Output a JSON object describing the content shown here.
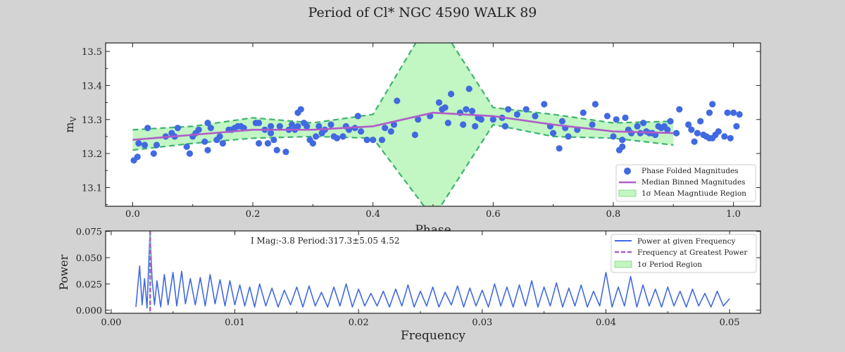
{
  "figure": {
    "title": "Period of Cl* NGC 4590   WALK      89",
    "background": "#d3d3d3"
  },
  "chart_data": [
    {
      "type": "scatter",
      "xlabel": "Phase",
      "ylabel": "m_V",
      "xlim": [
        -0.045,
        1.045
      ],
      "ylim": [
        13.045,
        13.525
      ],
      "xticks": [
        "0.0",
        "0.2",
        "0.4",
        "0.6",
        "0.8",
        "1.0"
      ],
      "xtick_values": [
        0.0,
        0.2,
        0.4,
        0.6,
        0.8,
        1.0
      ],
      "yticks": [
        "13.1",
        "13.2",
        "13.3",
        "13.4",
        "13.5"
      ],
      "ytick_values": [
        13.1,
        13.2,
        13.3,
        13.4,
        13.5
      ],
      "legend": {
        "placement": "lower-right",
        "entries": [
          "Phase Folded Magnitudes",
          "Median Binned Magnitudes",
          "1σ Mean Magntiude Region"
        ]
      },
      "colors": {
        "points": "#4169e1",
        "median": "#b05cc8",
        "band_fill": "#90ee90",
        "band_edge": "#3cb371"
      },
      "series": [
        {
          "name": "Phase Folded Magnitudes",
          "points": [
            [
              0.002,
              13.18
            ],
            [
              0.008,
              13.19
            ],
            [
              0.01,
              13.23
            ],
            [
              0.02,
              13.225
            ],
            [
              0.025,
              13.275
            ],
            [
              0.035,
              13.2
            ],
            [
              0.04,
              13.225
            ],
            [
              0.055,
              13.25
            ],
            [
              0.065,
              13.26
            ],
            [
              0.07,
              13.25
            ],
            [
              0.075,
              13.275
            ],
            [
              0.09,
              13.22
            ],
            [
              0.095,
              13.2
            ],
            [
              0.1,
              13.25
            ],
            [
              0.105,
              13.26
            ],
            [
              0.11,
              13.27
            ],
            [
              0.12,
              13.235
            ],
            [
              0.125,
              13.29
            ],
            [
              0.125,
              13.21
            ],
            [
              0.13,
              13.275
            ],
            [
              0.14,
              13.24
            ],
            [
              0.145,
              13.25
            ],
            [
              0.15,
              13.23
            ],
            [
              0.16,
              13.27
            ],
            [
              0.165,
              13.27
            ],
            [
              0.17,
              13.275
            ],
            [
              0.175,
              13.28
            ],
            [
              0.18,
              13.28
            ],
            [
              0.185,
              13.275
            ],
            [
              0.205,
              13.29
            ],
            [
              0.21,
              13.23
            ],
            [
              0.21,
              13.29
            ],
            [
              0.22,
              13.27
            ],
            [
              0.225,
              13.23
            ],
            [
              0.23,
              13.28
            ],
            [
              0.23,
              13.26
            ],
            [
              0.235,
              13.24
            ],
            [
              0.24,
              13.21
            ],
            [
              0.245,
              13.28
            ],
            [
              0.255,
              13.205
            ],
            [
              0.26,
              13.27
            ],
            [
              0.265,
              13.285
            ],
            [
              0.27,
              13.27
            ],
            [
              0.275,
              13.28
            ],
            [
              0.275,
              13.32
            ],
            [
              0.28,
              13.33
            ],
            [
              0.285,
              13.29
            ],
            [
              0.29,
              13.28
            ],
            [
              0.295,
              13.24
            ],
            [
              0.3,
              13.23
            ],
            [
              0.305,
              13.25
            ],
            [
              0.31,
              13.28
            ],
            [
              0.315,
              13.26
            ],
            [
              0.32,
              13.27
            ],
            [
              0.33,
              13.285
            ],
            [
              0.335,
              13.25
            ],
            [
              0.34,
              13.245
            ],
            [
              0.35,
              13.25
            ],
            [
              0.355,
              13.28
            ],
            [
              0.36,
              13.27
            ],
            [
              0.37,
              13.275
            ],
            [
              0.375,
              13.31
            ],
            [
              0.38,
              13.265
            ],
            [
              0.39,
              13.24
            ],
            [
              0.4,
              13.24
            ],
            [
              0.415,
              13.24
            ],
            [
              0.42,
              13.275
            ],
            [
              0.43,
              13.265
            ],
            [
              0.435,
              13.285
            ],
            [
              0.44,
              13.355
            ],
            [
              0.47,
              13.255
            ],
            [
              0.475,
              13.3
            ],
            [
              0.495,
              13.31
            ],
            [
              0.51,
              13.35
            ],
            [
              0.515,
              13.33
            ],
            [
              0.52,
              13.335
            ],
            [
              0.525,
              13.29
            ],
            [
              0.53,
              13.375
            ],
            [
              0.545,
              13.32
            ],
            [
              0.55,
              13.285
            ],
            [
              0.555,
              13.33
            ],
            [
              0.56,
              13.39
            ],
            [
              0.565,
              13.325
            ],
            [
              0.57,
              13.28
            ],
            [
              0.575,
              13.305
            ],
            [
              0.58,
              13.3
            ],
            [
              0.6,
              13.3
            ],
            [
              0.615,
              13.305
            ],
            [
              0.62,
              13.28
            ],
            [
              0.625,
              13.33
            ],
            [
              0.64,
              13.315
            ],
            [
              0.655,
              13.33
            ],
            [
              0.67,
              13.31
            ],
            [
              0.685,
              13.345
            ],
            [
              0.695,
              13.28
            ],
            [
              0.7,
              13.26
            ],
            [
              0.71,
              13.215
            ],
            [
              0.715,
              13.295
            ],
            [
              0.72,
              13.275
            ],
            [
              0.725,
              13.25
            ],
            [
              0.74,
              13.27
            ],
            [
              0.75,
              13.32
            ],
            [
              0.765,
              13.285
            ],
            [
              0.77,
              13.345
            ],
            [
              0.79,
              13.31
            ],
            [
              0.8,
              13.25
            ],
            [
              0.805,
              13.3
            ],
            [
              0.81,
              13.21
            ],
            [
              0.815,
              13.24
            ],
            [
              0.815,
              13.22
            ],
            [
              0.82,
              13.305
            ],
            [
              0.825,
              13.27
            ],
            [
              0.83,
              13.26
            ],
            [
              0.84,
              13.28
            ],
            [
              0.845,
              13.26
            ],
            [
              0.85,
              13.29
            ],
            [
              0.855,
              13.265
            ],
            [
              0.86,
              13.26
            ],
            [
              0.865,
              13.26
            ],
            [
              0.87,
              13.255
            ],
            [
              0.875,
              13.28
            ],
            [
              0.88,
              13.275
            ],
            [
              0.885,
              13.28
            ],
            [
              0.89,
              13.27
            ],
            [
              0.895,
              13.295
            ],
            [
              0.905,
              13.26
            ],
            [
              0.91,
              13.33
            ],
            [
              0.925,
              13.285
            ],
            [
              0.93,
              13.27
            ],
            [
              0.935,
              13.235
            ],
            [
              0.94,
              13.26
            ],
            [
              0.945,
              13.295
            ],
            [
              0.95,
              13.255
            ],
            [
              0.955,
              13.25
            ],
            [
              0.96,
              13.245
            ],
            [
              0.96,
              13.32
            ],
            [
              0.965,
              13.345
            ],
            [
              0.965,
              13.245
            ],
            [
              0.97,
              13.255
            ],
            [
              0.975,
              13.265
            ],
            [
              0.985,
              13.25
            ],
            [
              0.99,
              13.32
            ],
            [
              0.995,
              13.245
            ],
            [
              1.0,
              13.32
            ],
            [
              1.005,
              13.28
            ],
            [
              1.01,
              13.315
            ]
          ]
        },
        {
          "name": "Median Binned Magnitudes",
          "x": [
            0.0,
            0.1,
            0.2,
            0.3,
            0.4,
            0.5,
            0.6,
            0.7,
            0.8,
            0.9
          ],
          "y": [
            13.24,
            13.255,
            13.27,
            13.27,
            13.28,
            13.32,
            13.31,
            13.285,
            13.265,
            13.26
          ]
        },
        {
          "name": "1σ Mean Magntiude Region",
          "x": [
            0.0,
            0.1,
            0.2,
            0.3,
            0.4,
            0.5,
            0.6,
            0.7,
            0.8,
            0.9
          ],
          "upper": [
            13.27,
            13.28,
            13.305,
            13.29,
            13.315,
            13.61,
            13.335,
            13.315,
            13.29,
            13.295
          ],
          "lower": [
            13.21,
            13.23,
            13.245,
            13.25,
            13.245,
            13.01,
            13.285,
            13.25,
            13.245,
            13.225
          ]
        }
      ]
    },
    {
      "type": "line",
      "xlabel": "Frequency",
      "ylabel": "Power",
      "annotation": "I Mag:-3.8 Period:317.3±5.05 4.52",
      "xlim": [
        -0.00045,
        0.0525
      ],
      "ylim": [
        -0.003,
        0.0755
      ],
      "xticks": [
        "0.00",
        "0.01",
        "0.02",
        "0.03",
        "0.04",
        "0.05"
      ],
      "xtick_values": [
        0.0,
        0.01,
        0.02,
        0.03,
        0.04,
        0.05
      ],
      "yticks": [
        "0.000",
        "0.025",
        "0.050",
        "0.075"
      ],
      "ytick_values": [
        0.0,
        0.025,
        0.05,
        0.075
      ],
      "legend": {
        "placement": "upper-right",
        "entries": [
          "Power at given Frequency",
          "Frequency at Greatest Power",
          "1σ Period Region"
        ]
      },
      "colors": {
        "power": "#4169e1",
        "peak": "#b05cc8",
        "region": "#90ee90"
      },
      "peak_frequency": 0.00315,
      "series": [
        {
          "name": "Power at given Frequency",
          "x": [
            0.002,
            0.0023,
            0.0025,
            0.0027,
            0.0029,
            0.0031,
            0.00315,
            0.0033,
            0.0035,
            0.0037,
            0.004,
            0.0043,
            0.0046,
            0.005,
            0.0053,
            0.0057,
            0.006,
            0.0064,
            0.0068,
            0.0072,
            0.0076,
            0.008,
            0.0084,
            0.0088,
            0.0092,
            0.0096,
            0.01,
            0.0104,
            0.0108,
            0.0112,
            0.0116,
            0.012,
            0.0125,
            0.013,
            0.0135,
            0.014,
            0.0145,
            0.015,
            0.0155,
            0.016,
            0.0165,
            0.017,
            0.0175,
            0.018,
            0.0185,
            0.019,
            0.0195,
            0.02,
            0.0205,
            0.021,
            0.0215,
            0.022,
            0.0225,
            0.023,
            0.0235,
            0.024,
            0.0245,
            0.025,
            0.0255,
            0.026,
            0.0265,
            0.027,
            0.0275,
            0.028,
            0.0285,
            0.029,
            0.0295,
            0.03,
            0.0305,
            0.031,
            0.0315,
            0.032,
            0.0325,
            0.033,
            0.0335,
            0.034,
            0.0345,
            0.035,
            0.0355,
            0.036,
            0.0365,
            0.037,
            0.0375,
            0.038,
            0.0385,
            0.039,
            0.0395,
            0.04,
            0.0405,
            0.041,
            0.0415,
            0.042,
            0.0425,
            0.043,
            0.0435,
            0.044,
            0.0445,
            0.045,
            0.0455,
            0.046,
            0.0465,
            0.047,
            0.0475,
            0.048,
            0.0485,
            0.049,
            0.0495,
            0.05
          ],
          "y": [
            0.003,
            0.042,
            0.005,
            0.03,
            0.002,
            0.065,
            0.073,
            0.03,
            0.005,
            0.028,
            0.003,
            0.034,
            0.005,
            0.036,
            0.004,
            0.037,
            0.006,
            0.03,
            0.005,
            0.031,
            0.004,
            0.034,
            0.006,
            0.029,
            0.004,
            0.028,
            0.005,
            0.024,
            0.004,
            0.022,
            0.003,
            0.025,
            0.004,
            0.021,
            0.003,
            0.019,
            0.005,
            0.022,
            0.003,
            0.023,
            0.004,
            0.017,
            0.003,
            0.022,
            0.004,
            0.025,
            0.003,
            0.02,
            0.004,
            0.016,
            0.004,
            0.018,
            0.003,
            0.02,
            0.004,
            0.024,
            0.003,
            0.018,
            0.004,
            0.022,
            0.003,
            0.017,
            0.005,
            0.023,
            0.003,
            0.021,
            0.004,
            0.019,
            0.003,
            0.025,
            0.004,
            0.022,
            0.003,
            0.024,
            0.004,
            0.028,
            0.003,
            0.022,
            0.004,
            0.026,
            0.003,
            0.021,
            0.004,
            0.024,
            0.003,
            0.018,
            0.004,
            0.036,
            0.003,
            0.022,
            0.004,
            0.032,
            0.003,
            0.024,
            0.004,
            0.02,
            0.003,
            0.022,
            0.004,
            0.018,
            0.003,
            0.02,
            0.004,
            0.016,
            0.003,
            0.018,
            0.004,
            0.011
          ]
        },
        {
          "name": "Frequency at Greatest Power",
          "x": [
            0.00315
          ]
        }
      ]
    }
  ]
}
